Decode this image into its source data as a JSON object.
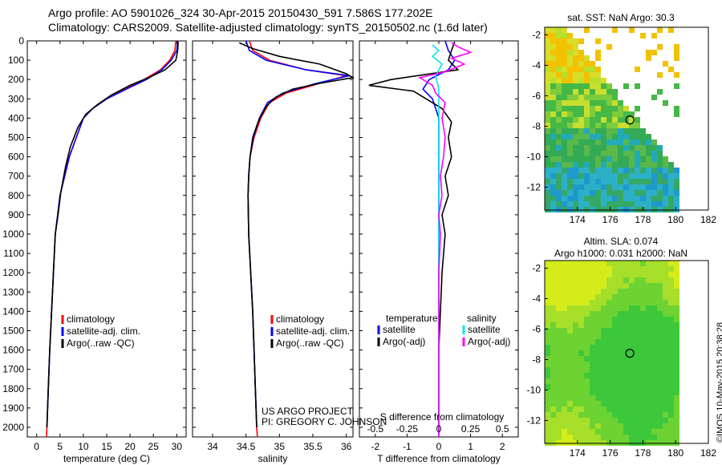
{
  "title_line1": "Argo profile: AO 5901026_324 30-Apr-2015 20150430_591 7.586S 177.202E",
  "title_line2": "Climatology: CARS2009. Satellite-adjusted climatology: synTS_20150502.nc (1.6d later)",
  "timestamp": "©IMOS 10-May-2015 20:38:28",
  "colors": {
    "climatology": "#ff0000",
    "satellite": "#0000ff",
    "argo": "#000000",
    "sat_salinity": "#00e5ee",
    "argo_salinity": "#ff00ff"
  },
  "chart_data": [
    {
      "type": "line",
      "id": "temperature",
      "xlabel": "temperature (deg C)",
      "ylim": [
        2050,
        0
      ],
      "y_ticks": [
        0,
        100,
        200,
        300,
        400,
        500,
        600,
        700,
        800,
        900,
        1000,
        1100,
        1200,
        1300,
        1400,
        1500,
        1600,
        1700,
        1800,
        1900,
        2000
      ],
      "xlim": [
        -2,
        32
      ],
      "x_ticks": [
        0,
        5,
        10,
        15,
        20,
        25,
        30
      ],
      "legend": [
        "climatology",
        "satellite-adj. clim.",
        "Argo(..raw -QC)"
      ],
      "series": [
        {
          "name": "climatology",
          "color": "#ff0000",
          "points": [
            [
              29.8,
              0
            ],
            [
              29.6,
              50
            ],
            [
              28.5,
              100
            ],
            [
              26.5,
              150
            ],
            [
              23,
              200
            ],
            [
              19,
              250
            ],
            [
              15,
              300
            ],
            [
              12,
              350
            ],
            [
              10,
              400
            ],
            [
              8.5,
              500
            ],
            [
              7,
              600
            ],
            [
              6,
              700
            ],
            [
              5,
              800
            ],
            [
              4.5,
              900
            ],
            [
              4,
              1000
            ],
            [
              3.6,
              1200
            ],
            [
              3.2,
              1400
            ],
            [
              2.8,
              1600
            ],
            [
              2.5,
              1800
            ],
            [
              2.2,
              2000
            ],
            [
              2.1,
              2050
            ]
          ]
        },
        {
          "name": "satellite-adj. clim.",
          "color": "#0000ff",
          "points": [
            [
              30.2,
              0
            ],
            [
              30,
              50
            ],
            [
              28.8,
              100
            ],
            [
              26.8,
              150
            ],
            [
              23.5,
              200
            ],
            [
              19.2,
              250
            ],
            [
              15,
              300
            ],
            [
              12,
              350
            ],
            [
              10,
              400
            ],
            [
              8.5,
              500
            ],
            [
              7,
              600
            ],
            [
              6,
              700
            ],
            [
              5,
              800
            ],
            [
              4.5,
              900
            ],
            [
              4,
              1000
            ],
            [
              3.6,
              1200
            ],
            [
              3.2,
              1400
            ],
            [
              2.8,
              1600
            ],
            [
              2.5,
              1800
            ],
            [
              2.2,
              2000
            ]
          ]
        },
        {
          "name": "Argo(..raw -QC)",
          "color": "#000000",
          "points": [
            [
              30.3,
              5
            ],
            [
              30.2,
              50
            ],
            [
              29.8,
              100
            ],
            [
              27.5,
              150
            ],
            [
              24,
              190
            ],
            [
              20,
              230
            ],
            [
              16,
              280
            ],
            [
              13,
              330
            ],
            [
              10.5,
              380
            ],
            [
              8.8,
              450
            ],
            [
              7.2,
              550
            ],
            [
              6.2,
              650
            ],
            [
              5.2,
              780
            ],
            [
              4.6,
              900
            ],
            [
              4,
              1000
            ],
            [
              3.6,
              1200
            ],
            [
              3.2,
              1400
            ],
            [
              2.8,
              1600
            ],
            [
              2.5,
              1800
            ],
            [
              2.2,
              2000
            ]
          ]
        }
      ]
    },
    {
      "type": "line",
      "id": "salinity",
      "xlabel": "salinity",
      "ylim": [
        2050,
        0
      ],
      "xlim": [
        33.7,
        36.1
      ],
      "x_ticks": [
        34,
        34.5,
        35,
        35.5,
        36
      ],
      "legend": [
        "climatology",
        "satellite-adj. clim.",
        "Argo(..raw -QC)"
      ],
      "annotation": [
        "US ARGO PROJECT",
        "PI: GREGORY C. JOHNSON"
      ],
      "series": [
        {
          "name": "climatology",
          "color": "#ff0000",
          "points": [
            [
              34.55,
              0
            ],
            [
              34.6,
              50
            ],
            [
              34.85,
              100
            ],
            [
              35.4,
              150
            ],
            [
              36.0,
              180
            ],
            [
              35.6,
              220
            ],
            [
              35.1,
              270
            ],
            [
              34.85,
              320
            ],
            [
              34.72,
              400
            ],
            [
              34.62,
              500
            ],
            [
              34.56,
              600
            ],
            [
              34.54,
              700
            ],
            [
              34.53,
              800
            ],
            [
              34.54,
              1000
            ],
            [
              34.57,
              1200
            ],
            [
              34.6,
              1400
            ],
            [
              34.62,
              1600
            ],
            [
              34.64,
              1800
            ],
            [
              34.66,
              2000
            ],
            [
              34.67,
              2050
            ]
          ]
        },
        {
          "name": "satellite-adj. clim.",
          "color": "#0000ff",
          "points": [
            [
              34.5,
              0
            ],
            [
              34.55,
              50
            ],
            [
              34.8,
              100
            ],
            [
              35.4,
              150
            ],
            [
              36.05,
              180
            ],
            [
              35.55,
              220
            ],
            [
              35.05,
              270
            ],
            [
              34.82,
              320
            ],
            [
              34.7,
              400
            ],
            [
              34.61,
              500
            ],
            [
              34.56,
              600
            ],
            [
              34.54,
              700
            ],
            [
              34.53,
              800
            ],
            [
              34.54,
              1000
            ],
            [
              34.57,
              1200
            ],
            [
              34.6,
              1400
            ],
            [
              34.62,
              1600
            ],
            [
              34.64,
              1800
            ],
            [
              34.66,
              2000
            ]
          ]
        },
        {
          "name": "Argo(..raw -QC)",
          "color": "#000000",
          "points": [
            [
              34.4,
              10
            ],
            [
              34.6,
              40
            ],
            [
              35.0,
              80
            ],
            [
              35.6,
              120
            ],
            [
              36.0,
              170
            ],
            [
              36.1,
              190
            ],
            [
              35.6,
              220
            ],
            [
              35.2,
              250
            ],
            [
              34.95,
              290
            ],
            [
              34.8,
              340
            ],
            [
              34.68,
              420
            ],
            [
              34.6,
              500
            ],
            [
              34.56,
              600
            ],
            [
              34.54,
              700
            ],
            [
              34.53,
              800
            ],
            [
              34.54,
              1000
            ],
            [
              34.57,
              1200
            ],
            [
              34.6,
              1400
            ],
            [
              34.62,
              1600
            ],
            [
              34.64,
              1800
            ],
            [
              34.66,
              2000
            ]
          ]
        }
      ]
    },
    {
      "type": "line",
      "id": "difference",
      "xlabel": "T difference from climatology",
      "xlabel_top": "S difference from climatology",
      "ylim": [
        2050,
        0
      ],
      "xlim": [
        -2.5,
        2.5
      ],
      "x_ticks": [
        -2,
        -1,
        0,
        1,
        2
      ],
      "x_ticks_top": [
        "-0.5",
        "-0.25",
        "0",
        "0.25",
        "0.5"
      ],
      "legend_temperature_title": "temperature",
      "legend_salinity_title": "salinity",
      "legend": [
        "satellite",
        "Argo(-adj)",
        "satellite",
        "Argo(-adj)"
      ],
      "series": [
        {
          "name": "satellite",
          "color": "#0000ff",
          "points": [
            [
              0.2,
              0
            ],
            [
              0.3,
              50
            ],
            [
              0.5,
              100
            ],
            [
              0.3,
              150
            ],
            [
              -0.3,
              200
            ],
            [
              -0.5,
              250
            ],
            [
              -0.2,
              300
            ],
            [
              0,
              400
            ],
            [
              0,
              600
            ],
            [
              0,
              1000
            ],
            [
              0,
              1500
            ],
            [
              0,
              2050
            ]
          ]
        },
        {
          "name": "Argo(-adj)",
          "color": "#000000",
          "points": [
            [
              0.5,
              5
            ],
            [
              0.4,
              50
            ],
            [
              0.3,
              100
            ],
            [
              0.6,
              150
            ],
            [
              -1.5,
              200
            ],
            [
              -2.2,
              230
            ],
            [
              -0.8,
              260
            ],
            [
              -0.4,
              300
            ],
            [
              0.1,
              350
            ],
            [
              0.4,
              420
            ],
            [
              0.3,
              500
            ],
            [
              0.4,
              600
            ],
            [
              0.2,
              700
            ],
            [
              0.3,
              800
            ],
            [
              0.1,
              900
            ],
            [
              0.2,
              1000
            ],
            [
              0.1,
              1200
            ],
            [
              0.05,
              1400
            ],
            [
              0,
              1600
            ],
            [
              0,
              2050
            ]
          ]
        },
        {
          "name": "satellite",
          "color": "#00e5ee",
          "points": [
            [
              -0.2,
              20
            ],
            [
              0,
              50
            ],
            [
              -0.2,
              80
            ],
            [
              0.1,
              120
            ],
            [
              -0.1,
              180
            ],
            [
              0,
              250
            ],
            [
              0,
              400
            ],
            [
              0,
              800
            ],
            [
              0,
              1200
            ],
            [
              0,
              1600
            ],
            [
              0,
              2050
            ]
          ]
        },
        {
          "name": "Argo(-adj)",
          "color": "#ff00ff",
          "points": [
            [
              0.4,
              10
            ],
            [
              0.6,
              30
            ],
            [
              1.0,
              60
            ],
            [
              0.4,
              90
            ],
            [
              0.8,
              120
            ],
            [
              0.2,
              160
            ],
            [
              -0.6,
              190
            ],
            [
              -0.2,
              230
            ],
            [
              -0.1,
              270
            ],
            [
              0.2,
              320
            ],
            [
              0.1,
              400
            ],
            [
              0.2,
              500
            ],
            [
              0.15,
              600
            ],
            [
              0.05,
              700
            ],
            [
              0.1,
              800
            ],
            [
              0,
              900
            ],
            [
              0.05,
              1000
            ],
            [
              0,
              1200
            ],
            [
              0,
              1600
            ],
            [
              0,
              2050
            ]
          ]
        }
      ]
    },
    {
      "type": "heatmap",
      "id": "sst_map",
      "title": "sat. SST: NaN Argo: 30.3",
      "xlim": [
        172,
        182
      ],
      "ylim": [
        -13.5,
        -1.5
      ],
      "x_ticks": [
        174,
        176,
        178,
        180,
        182
      ],
      "y_ticks": [
        -2,
        -4,
        -6,
        -8,
        -10,
        -12
      ],
      "marker": {
        "x": 177.202,
        "y": -7.586
      }
    },
    {
      "type": "heatmap",
      "id": "sla_map",
      "title_line1": "Altim. SLA: 0.074",
      "title_line2": "Argo h1000: 0.031 h2000: NaN",
      "xlim": [
        172,
        182
      ],
      "ylim": [
        -13.5,
        -1.5
      ],
      "x_ticks": [
        174,
        176,
        178,
        180,
        182
      ],
      "y_ticks": [
        -2,
        -4,
        -6,
        -8,
        -10,
        -12
      ],
      "marker": {
        "x": 177.202,
        "y": -7.586
      }
    }
  ]
}
